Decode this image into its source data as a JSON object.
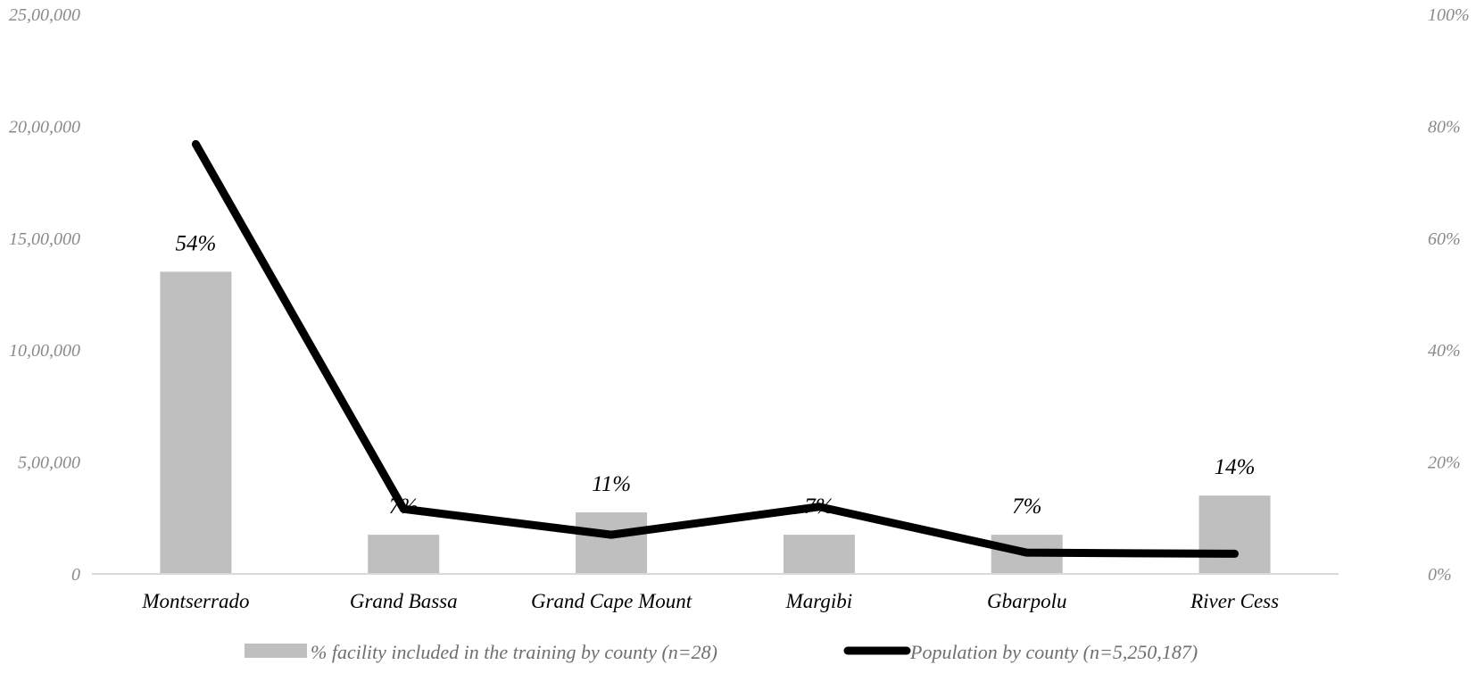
{
  "chart_data": {
    "type": "bar",
    "categories": [
      "Montserrado",
      "Grand Bassa",
      "Grand Cape Mount",
      "Margibi",
      "Gbarpolu",
      "River Cess"
    ],
    "bar_series": {
      "name": "% facility included in the training by county (n=28)",
      "values": [
        54,
        7,
        11,
        7,
        7,
        14
      ],
      "labels": [
        "54%",
        "7%",
        "11%",
        "7%",
        "7%",
        "14%"
      ],
      "color": "#bfbfbf",
      "axis": "right"
    },
    "line_series": {
      "name": "Population by county (n=5,250,187)",
      "values": [
        1920000,
        290000,
        175000,
        300000,
        95000,
        90000
      ],
      "color": "#000000",
      "axis": "left"
    },
    "left_axis": {
      "ylim": [
        0,
        2500000
      ],
      "ticks": [
        "0",
        "5,00,000",
        "10,00,000",
        "15,00,000",
        "20,00,000",
        "25,00,000"
      ]
    },
    "right_axis": {
      "ylim": [
        0,
        100
      ],
      "ticks": [
        "0%",
        "20%",
        "40%",
        "60%",
        "80%",
        "100%"
      ]
    },
    "legend_position": "bottom",
    "grid": false
  }
}
